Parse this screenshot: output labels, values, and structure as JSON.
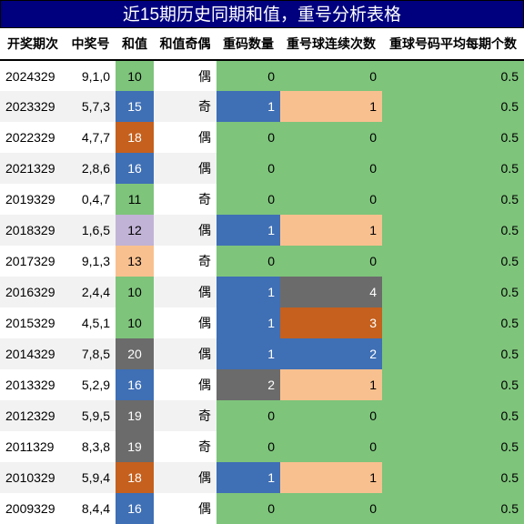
{
  "title": "近15期历史同期和值，重号分析表格",
  "headers": {
    "date": "开奖期次",
    "nums": "中奖号",
    "sum": "和值",
    "parity": "和值奇偶",
    "count": "重码数量",
    "streak": "重号球连续次数",
    "avg": "重球号码平均每期个数"
  },
  "colors": {
    "green": "#7ec47b",
    "blue": "#3f6fb5",
    "orange": "#c5601e",
    "purple": "#c1b3d6",
    "peach": "#f9c08f",
    "gray": "#6b6b6b"
  },
  "rows": [
    {
      "date": "2024329",
      "nums": "9,1,0",
      "sum": "10",
      "sum_color": "green",
      "parity": "偶",
      "count": "0",
      "count_color": "green",
      "streak": "0",
      "streak_color": "green",
      "avg": "0.5"
    },
    {
      "date": "2023329",
      "nums": "5,7,3",
      "sum": "15",
      "sum_color": "blue",
      "parity": "奇",
      "count": "1",
      "count_color": "blue",
      "streak": "1",
      "streak_color": "peach",
      "avg": "0.5"
    },
    {
      "date": "2022329",
      "nums": "4,7,7",
      "sum": "18",
      "sum_color": "orange",
      "parity": "偶",
      "count": "0",
      "count_color": "green",
      "streak": "0",
      "streak_color": "green",
      "avg": "0.5"
    },
    {
      "date": "2021329",
      "nums": "2,8,6",
      "sum": "16",
      "sum_color": "blue",
      "parity": "偶",
      "count": "0",
      "count_color": "green",
      "streak": "0",
      "streak_color": "green",
      "avg": "0.5"
    },
    {
      "date": "2019329",
      "nums": "0,4,7",
      "sum": "11",
      "sum_color": "green",
      "parity": "奇",
      "count": "0",
      "count_color": "green",
      "streak": "0",
      "streak_color": "green",
      "avg": "0.5"
    },
    {
      "date": "2018329",
      "nums": "1,6,5",
      "sum": "12",
      "sum_color": "purple",
      "parity": "偶",
      "count": "1",
      "count_color": "blue",
      "streak": "1",
      "streak_color": "peach",
      "avg": "0.5"
    },
    {
      "date": "2017329",
      "nums": "9,1,3",
      "sum": "13",
      "sum_color": "peach",
      "parity": "奇",
      "count": "0",
      "count_color": "green",
      "streak": "0",
      "streak_color": "green",
      "avg": "0.5"
    },
    {
      "date": "2016329",
      "nums": "2,4,4",
      "sum": "10",
      "sum_color": "green",
      "parity": "偶",
      "count": "1",
      "count_color": "blue",
      "streak": "4",
      "streak_color": "gray",
      "avg": "0.5"
    },
    {
      "date": "2015329",
      "nums": "4,5,1",
      "sum": "10",
      "sum_color": "green",
      "parity": "偶",
      "count": "1",
      "count_color": "blue",
      "streak": "3",
      "streak_color": "orange",
      "avg": "0.5"
    },
    {
      "date": "2014329",
      "nums": "7,8,5",
      "sum": "20",
      "sum_color": "gray",
      "parity": "偶",
      "count": "1",
      "count_color": "blue",
      "streak": "2",
      "streak_color": "blue",
      "avg": "0.5"
    },
    {
      "date": "2013329",
      "nums": "5,2,9",
      "sum": "16",
      "sum_color": "blue",
      "parity": "偶",
      "count": "2",
      "count_color": "gray",
      "streak": "1",
      "streak_color": "peach",
      "avg": "0.5"
    },
    {
      "date": "2012329",
      "nums": "5,9,5",
      "sum": "19",
      "sum_color": "gray",
      "parity": "奇",
      "count": "0",
      "count_color": "green",
      "streak": "0",
      "streak_color": "green",
      "avg": "0.5"
    },
    {
      "date": "2011329",
      "nums": "8,3,8",
      "sum": "19",
      "sum_color": "gray",
      "parity": "奇",
      "count": "0",
      "count_color": "green",
      "streak": "0",
      "streak_color": "green",
      "avg": "0.5"
    },
    {
      "date": "2010329",
      "nums": "5,9,4",
      "sum": "18",
      "sum_color": "orange",
      "parity": "偶",
      "count": "1",
      "count_color": "blue",
      "streak": "1",
      "streak_color": "peach",
      "avg": "0.5"
    },
    {
      "date": "2009329",
      "nums": "8,4,4",
      "sum": "16",
      "sum_color": "blue",
      "parity": "偶",
      "count": "0",
      "count_color": "green",
      "streak": "0",
      "streak_color": "green",
      "avg": "0.5"
    }
  ]
}
